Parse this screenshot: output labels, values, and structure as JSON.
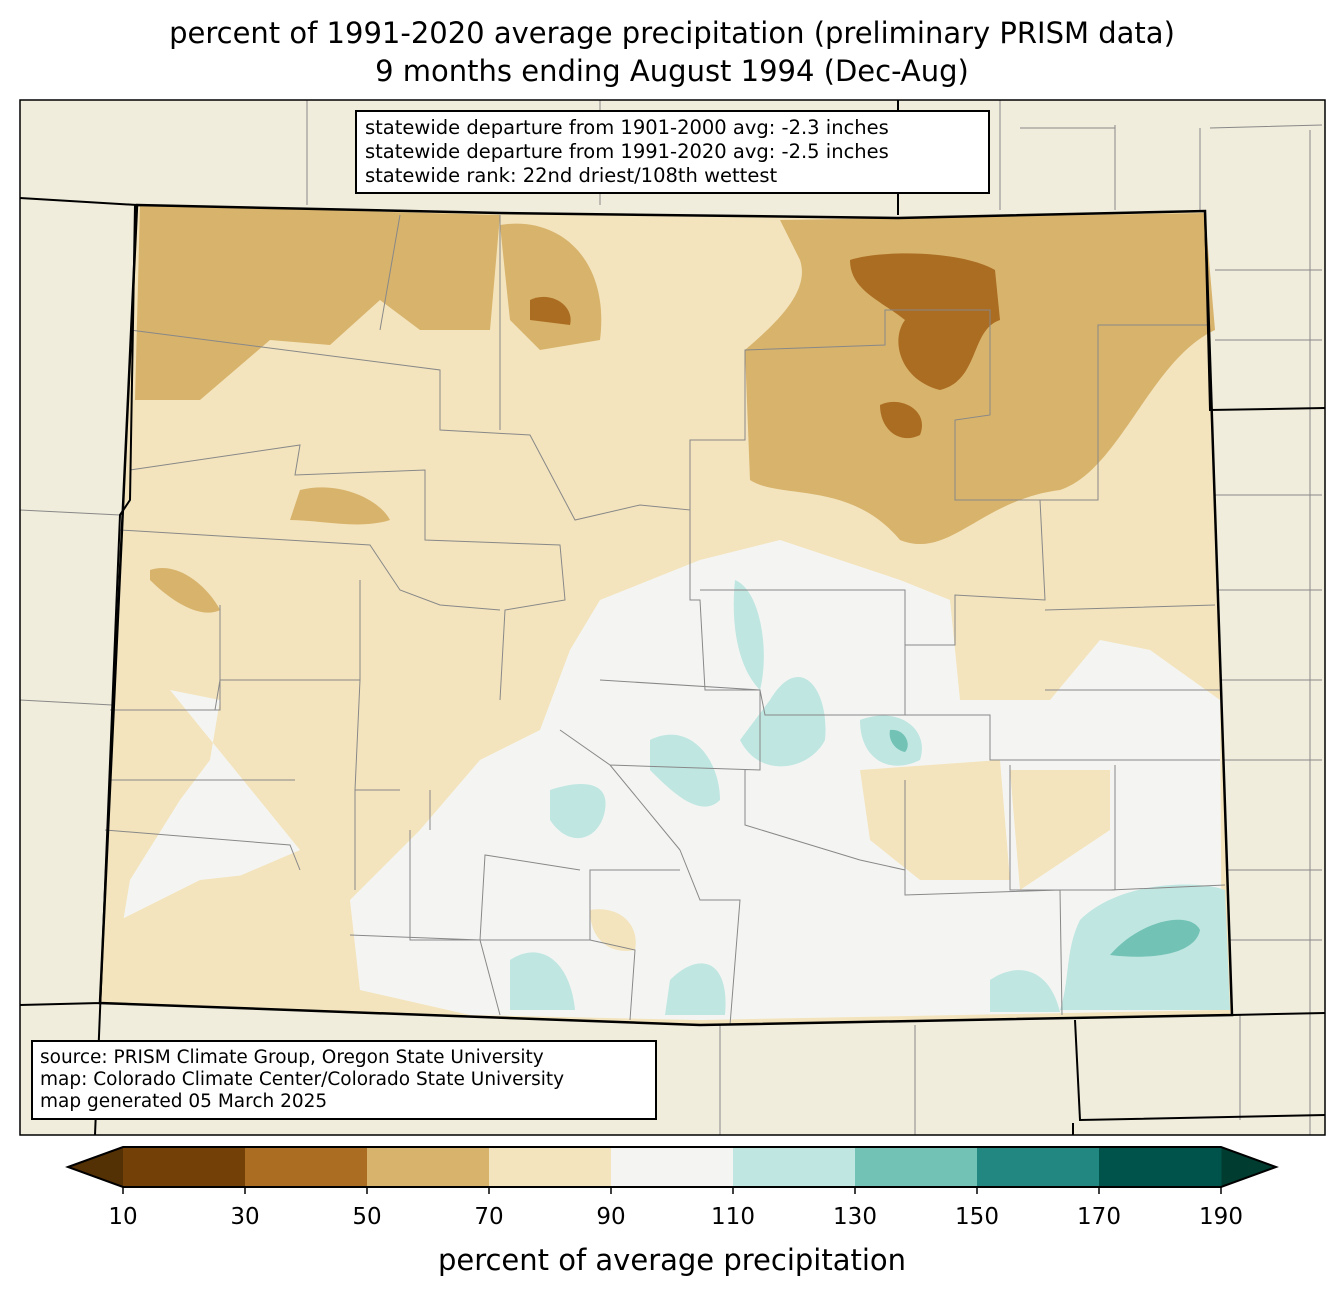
{
  "title": {
    "line1": "percent of 1991-2020 average precipitation (preliminary PRISM data)",
    "line2": "9 months ending August 1994 (Dec-Aug)"
  },
  "stats": {
    "line1": "statewide departure from 1901-2000 avg: -2.3 inches",
    "line2": "statewide departure from 1991-2020 avg: -2.5 inches",
    "line3": "statewide rank: 22nd driest/108th wettest"
  },
  "credits": {
    "line1": "source: PRISM Climate Group, Oregon State University",
    "line2": "map: Colorado Climate Center/Colorado State University",
    "line3": "map generated 05 March 2025"
  },
  "colorbar": {
    "label": "percent of average precipitation",
    "ticks": [
      "10",
      "30",
      "50",
      "70",
      "90",
      "110",
      "130",
      "150",
      "170",
      "190"
    ],
    "under_color": "#543005",
    "over_color": "#003c30",
    "colors": [
      "#734108",
      "#ab6d22",
      "#d8b36c",
      "#f3e4bd",
      "#f4f5f3",
      "#bfe6e1",
      "#72c2b5",
      "#218780",
      "#00534a"
    ]
  },
  "colors": {
    "background": "#f0eddc",
    "state_border": "#000000",
    "county_border": "#808080"
  }
}
